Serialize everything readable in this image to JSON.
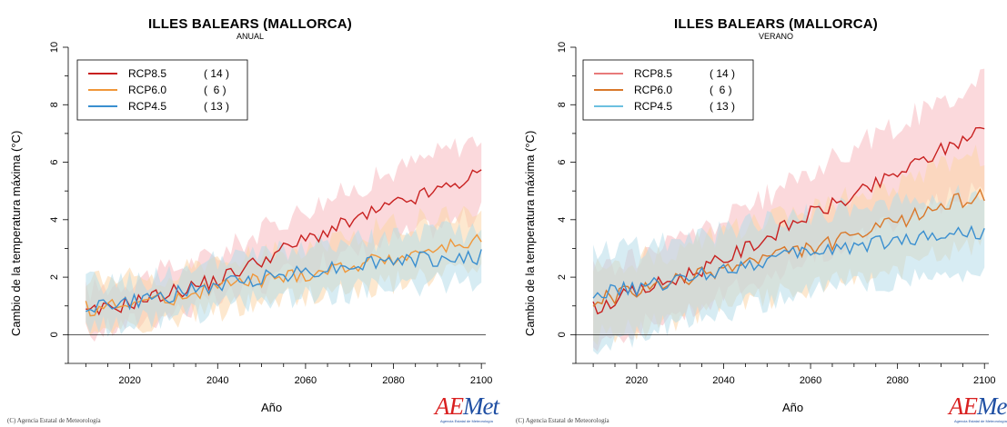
{
  "chart_data": [
    {
      "type": "line",
      "title": "ILLES BALEARS (MALLORCA)",
      "subtitle": "ANUAL",
      "xlabel": "Año",
      "ylabel": "Cambio de la temperatura máxima (°C)",
      "xlim": [
        2006,
        2101
      ],
      "ylim": [
        -1,
        10
      ],
      "xticks": [
        2020,
        2040,
        2060,
        2080,
        2100
      ],
      "yticks": [
        0,
        2,
        4,
        6,
        8,
        10
      ],
      "grid": false,
      "zero_line": true,
      "legend_position": "top-left",
      "legend": [
        {
          "name": "RCP8.5",
          "count": "( 14 )",
          "color": "#c8201f"
        },
        {
          "name": "RCP6.0",
          "count": "(  6 )",
          "color": "#f0973a"
        },
        {
          "name": "RCP4.5",
          "count": "( 13 )",
          "color": "#3a8fd0"
        }
      ],
      "series": [
        {
          "name": "RCP8.5",
          "color": "#c8201f",
          "band_color": "#f7b9c0",
          "x": [
            2010,
            2020,
            2030,
            2040,
            2050,
            2060,
            2070,
            2080,
            2090,
            2100
          ],
          "values": [
            0.7,
            1.1,
            1.5,
            1.9,
            2.6,
            3.3,
            3.9,
            4.5,
            5.0,
            5.6
          ],
          "lower": [
            0.0,
            0.4,
            0.8,
            1.2,
            1.7,
            2.3,
            2.8,
            3.3,
            3.8,
            4.2
          ],
          "upper": [
            1.5,
            1.9,
            2.3,
            2.8,
            3.6,
            4.4,
            5.0,
            5.7,
            6.3,
            6.9
          ]
        },
        {
          "name": "RCP6.0",
          "color": "#f0973a",
          "band_color": "#fbd6a8",
          "x": [
            2010,
            2020,
            2030,
            2040,
            2050,
            2060,
            2070,
            2080,
            2090,
            2100
          ],
          "values": [
            0.9,
            1.1,
            1.3,
            1.7,
            1.9,
            2.1,
            2.4,
            2.7,
            3.0,
            3.3
          ],
          "lower": [
            0.1,
            0.3,
            0.5,
            0.8,
            1.1,
            1.3,
            1.5,
            1.8,
            2.0,
            2.3
          ],
          "upper": [
            1.8,
            1.9,
            2.1,
            2.5,
            2.8,
            3.0,
            3.4,
            3.8,
            4.1,
            4.4
          ]
        },
        {
          "name": "RCP4.5",
          "color": "#3a8fd0",
          "band_color": "#b7dcea",
          "x": [
            2010,
            2020,
            2030,
            2040,
            2050,
            2060,
            2070,
            2080,
            2090,
            2100
          ],
          "values": [
            1.0,
            1.1,
            1.4,
            1.7,
            2.0,
            2.2,
            2.4,
            2.6,
            2.6,
            2.7
          ],
          "lower": [
            0.2,
            0.4,
            0.6,
            0.9,
            1.2,
            1.4,
            1.5,
            1.7,
            1.8,
            1.9
          ],
          "upper": [
            1.8,
            1.8,
            2.1,
            2.5,
            2.8,
            3.0,
            3.2,
            3.4,
            3.5,
            3.6
          ]
        }
      ]
    },
    {
      "type": "line",
      "title": "ILLES BALEARS (MALLORCA)",
      "subtitle": "VERANO",
      "xlabel": "Año",
      "ylabel": "Cambio de la temperatura máxima (°C)",
      "xlim": [
        2006,
        2101
      ],
      "ylim": [
        -1,
        10
      ],
      "xticks": [
        2020,
        2040,
        2060,
        2080,
        2100
      ],
      "yticks": [
        0,
        2,
        4,
        6,
        8,
        10
      ],
      "grid": false,
      "zero_line": true,
      "legend_position": "top-left",
      "legend": [
        {
          "name": "RCP8.5",
          "count": "( 14 )",
          "color": "#e87a7a"
        },
        {
          "name": "RCP6.0",
          "count": "(  6 )",
          "color": "#d9782a"
        },
        {
          "name": "RCP4.5",
          "count": "( 13 )",
          "color": "#6cc0e0"
        }
      ],
      "series": [
        {
          "name": "RCP8.5",
          "color": "#c8201f",
          "band_color": "#f7b9c0",
          "x": [
            2010,
            2020,
            2030,
            2040,
            2050,
            2060,
            2070,
            2080,
            2090,
            2100
          ],
          "values": [
            0.9,
            1.5,
            2.0,
            2.6,
            3.4,
            4.2,
            4.8,
            5.6,
            6.4,
            7.2
          ],
          "lower": [
            -0.3,
            0.3,
            0.8,
            1.4,
            2.0,
            2.7,
            3.3,
            3.9,
            4.6,
            5.2
          ],
          "upper": [
            2.2,
            2.7,
            3.3,
            4.0,
            4.8,
            5.7,
            6.5,
            7.3,
            8.1,
            8.9
          ]
        },
        {
          "name": "RCP6.0",
          "color": "#d9782a",
          "band_color": "#fbd6a8",
          "x": [
            2010,
            2020,
            2030,
            2040,
            2050,
            2060,
            2070,
            2080,
            2090,
            2100
          ],
          "values": [
            1.2,
            1.5,
            1.9,
            2.3,
            2.7,
            3.0,
            3.4,
            3.9,
            4.5,
            4.9
          ],
          "lower": [
            0.0,
            0.2,
            0.6,
            1.0,
            1.3,
            1.6,
            1.9,
            2.3,
            2.8,
            3.2
          ],
          "upper": [
            2.3,
            2.6,
            3.0,
            3.5,
            3.9,
            4.4,
            4.8,
            5.3,
            5.8,
            6.3
          ]
        },
        {
          "name": "RCP4.5",
          "color": "#3a8fd0",
          "band_color": "#b7dcea",
          "x": [
            2010,
            2020,
            2030,
            2040,
            2050,
            2060,
            2070,
            2080,
            2090,
            2100
          ],
          "values": [
            1.4,
            1.6,
            1.9,
            2.3,
            2.6,
            2.9,
            3.1,
            3.3,
            3.5,
            3.6
          ],
          "lower": [
            -0.3,
            0.0,
            0.4,
            0.8,
            1.2,
            1.5,
            1.7,
            1.9,
            2.1,
            2.2
          ],
          "upper": [
            2.8,
            3.0,
            3.3,
            3.6,
            3.9,
            4.2,
            4.4,
            4.6,
            4.8,
            5.0
          ]
        }
      ]
    }
  ],
  "footer": {
    "copyright": "(C) Agencia Estatal de Meteorología",
    "logo_text_red": "AE",
    "logo_text_blue": "Met",
    "logo_subtext": "Agencia Estatal de Meteorología"
  }
}
